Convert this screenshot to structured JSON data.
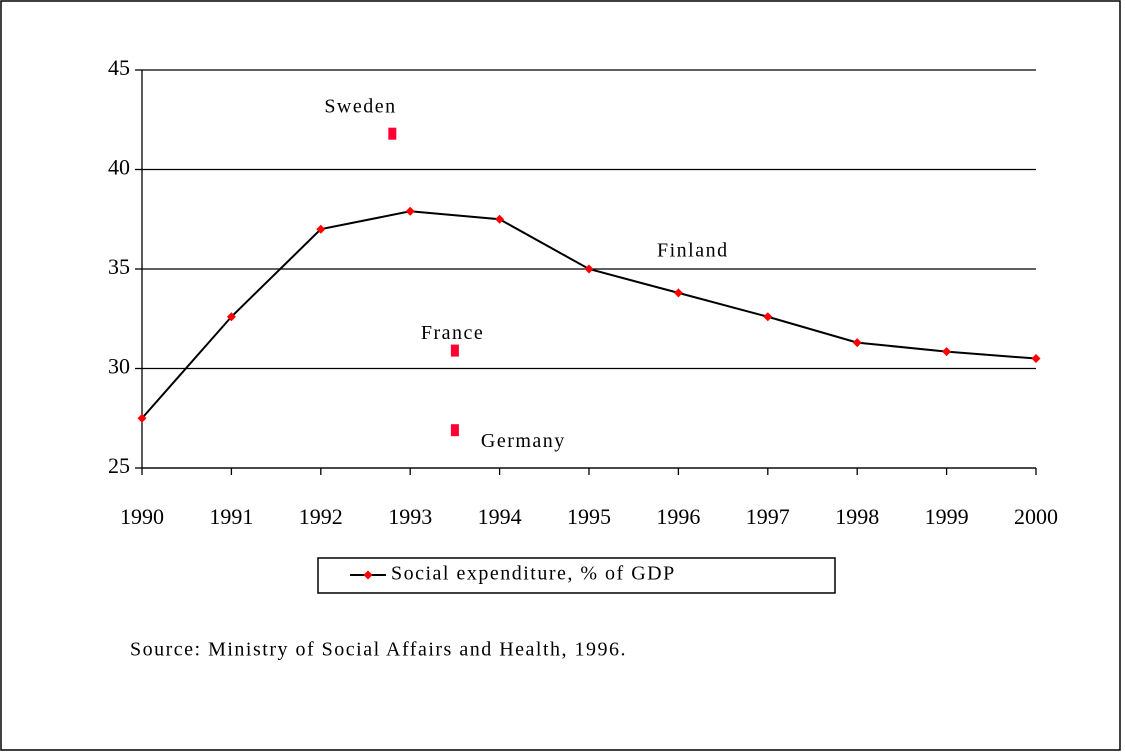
{
  "chart_data": {
    "type": "line",
    "x": [
      1990,
      1991,
      1992,
      1993,
      1994,
      1995,
      1996,
      1997,
      1998,
      1999,
      2000
    ],
    "series": [
      {
        "name": "Social expenditure, % of GDP",
        "color": "#000000",
        "marker_color": "#ff0000",
        "values": [
          27.5,
          32.6,
          37.0,
          37.9,
          37.5,
          35.0,
          33.8,
          32.6,
          31.3,
          30.85,
          30.5
        ]
      }
    ],
    "annotation": "Finland",
    "points": [
      {
        "label": "Sweden",
        "x": 1992.8,
        "y": 41.8
      },
      {
        "label": "France",
        "x": 1993.5,
        "y": 30.9
      },
      {
        "label": "Germany",
        "x": 1993.5,
        "y": 26.9
      }
    ],
    "points_color": "#ff0033",
    "xlim": [
      1990,
      2000
    ],
    "xticks": [
      1990,
      1991,
      1992,
      1993,
      1994,
      1995,
      1996,
      1997,
      1998,
      1999,
      2000
    ],
    "ylim": [
      25,
      45
    ],
    "yticks": [
      25,
      30,
      35,
      40,
      45
    ],
    "grid": true,
    "source": "Source: Ministry of Social Affairs and Health, 1996."
  }
}
